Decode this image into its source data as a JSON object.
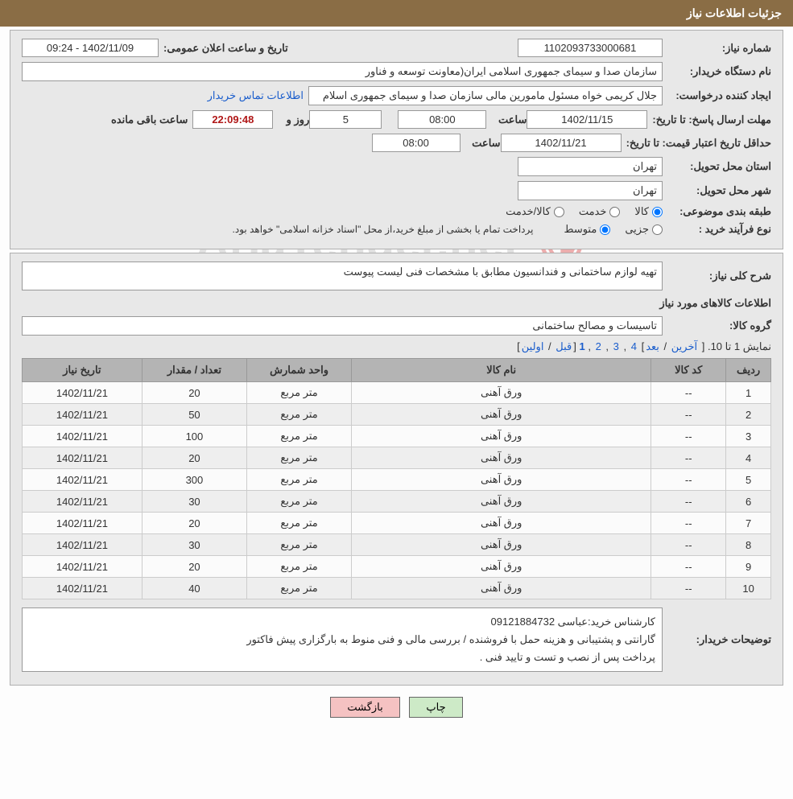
{
  "header": {
    "title": "جزئیات اطلاعات نیاز"
  },
  "watermark": {
    "shield": "🛡",
    "text": "AriaTender.net"
  },
  "info": {
    "need_no_label": "شماره نیاز:",
    "need_no": "1102093733000681",
    "announce_label": "تاریخ و ساعت اعلان عمومی:",
    "announce_value": "1402/11/09 - 09:24",
    "buyer_org_label": "نام دستگاه خریدار:",
    "buyer_org": "سازمان صدا و سیمای جمهوری اسلامی ایران(معاونت توسعه و فناور",
    "requester_label": "ایجاد کننده درخواست:",
    "requester": "جلال کریمی خواه مسئول مامورین مالی  سازمان صدا و سیمای جمهوری اسلام",
    "contact_link": "اطلاعات تماس خریدار",
    "deadline_label": "مهلت ارسال پاسخ: تا تاریخ:",
    "deadline_date": "1402/11/15",
    "time_label": "ساعت",
    "deadline_time": "08:00",
    "days_label": "روز و",
    "days_value": "5",
    "countdown": "22:09:48",
    "remain_label": "ساعت باقی مانده",
    "validity_label": "حداقل تاریخ اعتبار قیمت: تا تاریخ:",
    "validity_date": "1402/11/21",
    "validity_time": "08:00",
    "province_label": "استان محل تحویل:",
    "province": "تهران",
    "city_label": "شهر محل تحویل:",
    "city": "تهران",
    "category_label": "طبقه بندی موضوعی:",
    "cat_goods": "کالا",
    "cat_service": "خدمت",
    "cat_both": "کالا/خدمت",
    "process_label": "نوع فرآیند خرید :",
    "proc_partial": "جزیی",
    "proc_medium": "متوسط",
    "process_note": "پرداخت تمام یا بخشی از مبلغ خرید،از محل \"اسناد خزانه اسلامی\" خواهد بود."
  },
  "detail": {
    "desc_label": "شرح کلی نیاز:",
    "desc_text": "تهیه لوازم ساختمانی و فندانسیون مطابق با مشخصات فنی لیست پیوست",
    "items_title": "اطلاعات کالاهای مورد نیاز",
    "group_label": "گروه کالا:",
    "group_value": "تاسیسات و مصالح ساختمانی",
    "pager_text": "نمایش 1 تا 10. ",
    "pager_last": "آخرین",
    "pager_next": "بعد",
    "pager_p4": "4",
    "pager_p3": "3",
    "pager_p2": "2",
    "pager_p1": "1",
    "pager_prev": "قبل",
    "pager_first": "اولین",
    "table": {
      "headers": [
        "ردیف",
        "کد کالا",
        "نام کالا",
        "واحد شمارش",
        "تعداد / مقدار",
        "تاریخ نیاز"
      ],
      "rows": [
        [
          "1",
          "--",
          "ورق آهنی",
          "متر مربع",
          "20",
          "1402/11/21"
        ],
        [
          "2",
          "--",
          "ورق آهنی",
          "متر مربع",
          "50",
          "1402/11/21"
        ],
        [
          "3",
          "--",
          "ورق آهنی",
          "متر مربع",
          "100",
          "1402/11/21"
        ],
        [
          "4",
          "--",
          "ورق آهنی",
          "متر مربع",
          "20",
          "1402/11/21"
        ],
        [
          "5",
          "--",
          "ورق آهنی",
          "متر مربع",
          "300",
          "1402/11/21"
        ],
        [
          "6",
          "--",
          "ورق آهنی",
          "متر مربع",
          "30",
          "1402/11/21"
        ],
        [
          "7",
          "--",
          "ورق آهنی",
          "متر مربع",
          "20",
          "1402/11/21"
        ],
        [
          "8",
          "--",
          "ورق آهنی",
          "متر مربع",
          "30",
          "1402/11/21"
        ],
        [
          "9",
          "--",
          "ورق آهنی",
          "متر مربع",
          "20",
          "1402/11/21"
        ],
        [
          "10",
          "--",
          "ورق آهنی",
          "متر مربع",
          "40",
          "1402/11/21"
        ]
      ],
      "col_widths": [
        "6%",
        "10%",
        "40%",
        "14%",
        "14%",
        "16%"
      ]
    },
    "notes_label": "توضیحات خریدار:",
    "notes_l1": "کارشناس خرید:عباسی 09121884732",
    "notes_l2": "گارانتی و پشتیبانی و هزینه حمل با فروشنده / بررسی مالی و فنی منوط به بارگزاری پیش فاکتور",
    "notes_l3": "پرداخت پس از نصب و تست و تایید فنی ."
  },
  "footer": {
    "print": "چاپ",
    "back": "بازگشت"
  },
  "colors": {
    "header": "#8a6d45",
    "panel": "#e8e8e8",
    "link": "#1a5dcc",
    "countdown": "#b01818"
  }
}
